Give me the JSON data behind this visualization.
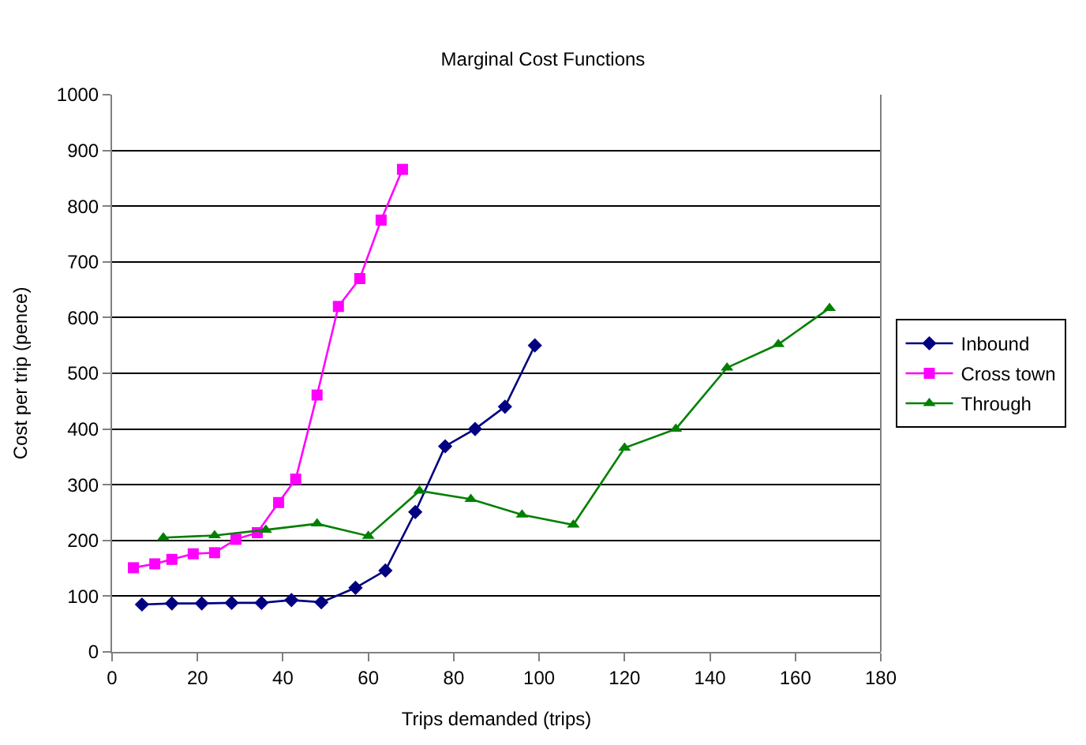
{
  "chart_data": {
    "type": "line",
    "title": "Marginal Cost Functions",
    "xlabel": "Trips demanded (trips)",
    "ylabel": "Cost per trip (pence)",
    "xlim": [
      0,
      180
    ],
    "xticks": [
      0,
      20,
      40,
      60,
      80,
      100,
      120,
      140,
      160,
      180
    ],
    "ylim": [
      0,
      1000
    ],
    "yticks": [
      0,
      100,
      200,
      300,
      400,
      500,
      600,
      700,
      800,
      900,
      1000
    ],
    "grid": "y",
    "legend": "right",
    "line_style": "solid",
    "series": [
      {
        "name": "Inbound",
        "color": "#000080",
        "marker": "diamond",
        "x": [
          7,
          14,
          21,
          28,
          35,
          42,
          49,
          57,
          64,
          71,
          78,
          85,
          92,
          99
        ],
        "values": [
          85,
          87,
          87,
          88,
          88,
          93,
          89,
          115,
          146,
          251,
          369,
          400,
          440,
          550
        ]
      },
      {
        "name": "Cross town",
        "color": "#ff00ff",
        "marker": "square",
        "x": [
          5,
          10,
          14,
          19,
          24,
          29,
          34,
          39,
          43,
          48,
          53,
          58,
          63,
          68
        ],
        "values": [
          151,
          158,
          166,
          176,
          178,
          202,
          214,
          268,
          310,
          461,
          620,
          670,
          775,
          866
        ]
      },
      {
        "name": "Through",
        "color": "#008000",
        "marker": "triangle",
        "x": [
          12,
          24,
          36,
          48,
          60,
          72,
          84,
          96,
          108,
          120,
          132,
          144,
          156,
          168
        ],
        "values": [
          205,
          209,
          219,
          230,
          208,
          289,
          274,
          246,
          228,
          366,
          400,
          510,
          552,
          617
        ]
      }
    ]
  }
}
